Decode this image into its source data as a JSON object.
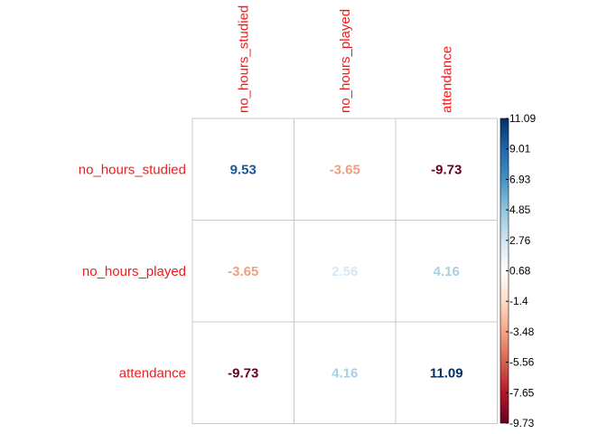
{
  "chart_data": {
    "type": "heatmap",
    "rows": [
      "no_hours_studied",
      "no_hours_played",
      "attendance"
    ],
    "columns": [
      "no_hours_studied",
      "no_hours_played",
      "attendance"
    ],
    "values": [
      [
        9.53,
        -3.65,
        -9.73
      ],
      [
        -3.65,
        2.56,
        4.16
      ],
      [
        -9.73,
        4.16,
        11.09
      ]
    ],
    "value_labels": [
      [
        "9.53",
        "-3.65",
        "-9.73"
      ],
      [
        "-3.65",
        "2.56",
        "4.16"
      ],
      [
        "-9.73",
        "4.16",
        "11.09"
      ]
    ],
    "colorbar": {
      "min": -9.73,
      "max": 11.09,
      "tick_labels": [
        "11.09",
        "9.01",
        "6.93",
        "4.85",
        "2.76",
        "0.68",
        "-1.4",
        "-3.48",
        "-5.56",
        "-7.65",
        "-9.73"
      ]
    },
    "grid": true,
    "legend": "colorbar-right"
  },
  "colors": {
    "label_text": "#ee1c1c",
    "grid": "#c8c8c8",
    "palette": [
      "#67001f",
      "#b2182b",
      "#d6604d",
      "#f4a582",
      "#fddbc7",
      "#ffffff",
      "#d1e5f0",
      "#92c5de",
      "#4393c3",
      "#2166ac",
      "#053061"
    ]
  }
}
